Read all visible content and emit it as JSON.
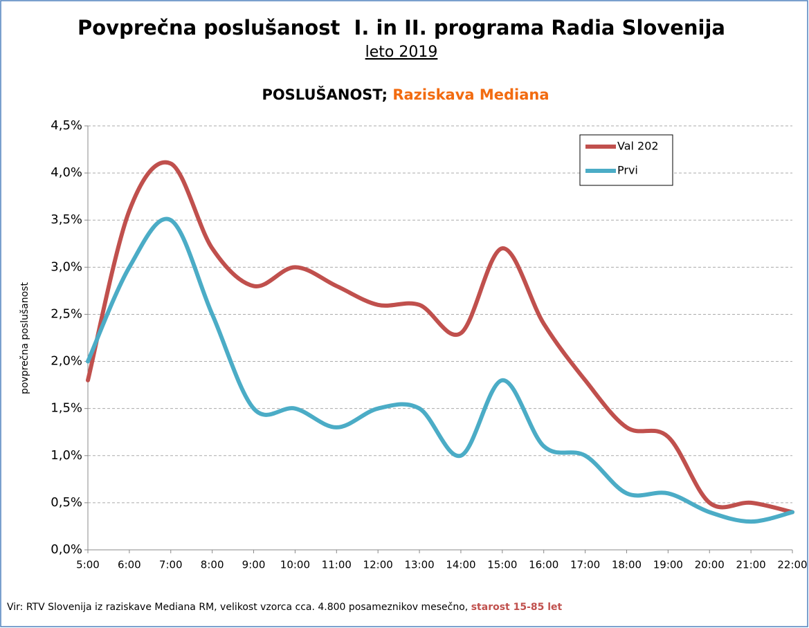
{
  "chart_data": {
    "type": "line",
    "title": "Povprečna poslušanost  I. in II. programa Radia Slovenija",
    "subtitle": "leto 2019",
    "chart_title": [
      "POSLUŠANOST;",
      "Raziskava Mediana"
    ],
    "y_label": "povprečna poslušanost",
    "footer": [
      "Vir: RTV Slovenija iz raziskave Mediana RM, velikost vzorca cca. 4.800 posameznikov mesečno,",
      "starost 15-85 let"
    ],
    "categories": [
      "5:00",
      "6:00",
      "7:00",
      "8:00",
      "9:00",
      "10:00",
      "11:00",
      "12:00",
      "13:00",
      "14:00",
      "15:00",
      "16:00",
      "17:00",
      "18:00",
      "19:00",
      "20:00",
      "21:00",
      "22:00"
    ],
    "series": [
      {
        "name": "Val 202",
        "color": "#c0504d",
        "values": [
          1.8,
          3.6,
          4.1,
          3.2,
          2.8,
          3.0,
          2.8,
          2.6,
          2.6,
          2.3,
          3.2,
          2.4,
          1.8,
          1.3,
          1.2,
          0.5,
          0.5,
          0.4
        ]
      },
      {
        "name": "Prvi",
        "color": "#4bacc6",
        "values": [
          2.0,
          3.0,
          3.5,
          2.5,
          1.5,
          1.5,
          1.3,
          1.5,
          1.5,
          1.0,
          1.8,
          1.1,
          1.0,
          0.6,
          0.6,
          0.4,
          0.3,
          0.4
        ]
      }
    ],
    "ylim": [
      0,
      4.5
    ],
    "yticks": [
      {
        "value": 0,
        "label": "0,0%"
      },
      {
        "value": 0.5,
        "label": "0,5%"
      },
      {
        "value": 1,
        "label": "1,0%"
      },
      {
        "value": 1.5,
        "label": "1,5%"
      },
      {
        "value": 2,
        "label": "2,0%"
      },
      {
        "value": 2.5,
        "label": "2,5%"
      },
      {
        "value": 3,
        "label": "3,0%"
      },
      {
        "value": 3.5,
        "label": "3,5%"
      },
      {
        "value": 4,
        "label": "4,0%"
      },
      {
        "value": 4.5,
        "label": "4,5%"
      }
    ],
    "grid": true,
    "smooth": true,
    "legend": "upper right"
  }
}
